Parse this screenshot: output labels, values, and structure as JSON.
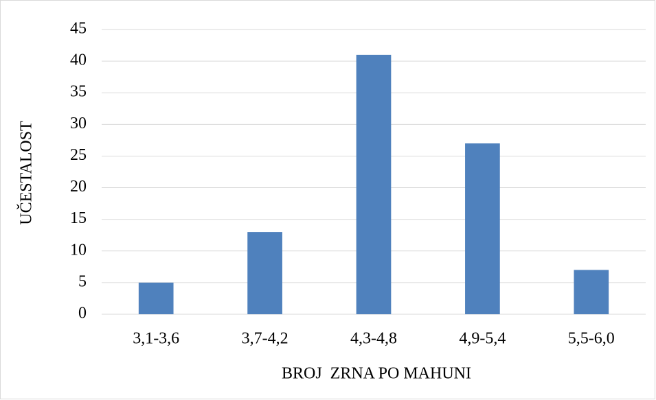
{
  "chart_data": {
    "type": "bar",
    "categories": [
      "3,1-3,6",
      "3,7-4,2",
      "4,3-4,8",
      "4,9-5,4",
      "5,5-6,0"
    ],
    "values": [
      5,
      13,
      41,
      27,
      7
    ],
    "color": "#4f81bd",
    "xlabel": "BROJ  ZRNA PO MAHUNI",
    "ylabel": "UČESTALOST",
    "ylim": [
      0,
      45
    ],
    "yticks": [
      0,
      5,
      10,
      15,
      20,
      25,
      30,
      35,
      40,
      45
    ],
    "grid": true
  }
}
